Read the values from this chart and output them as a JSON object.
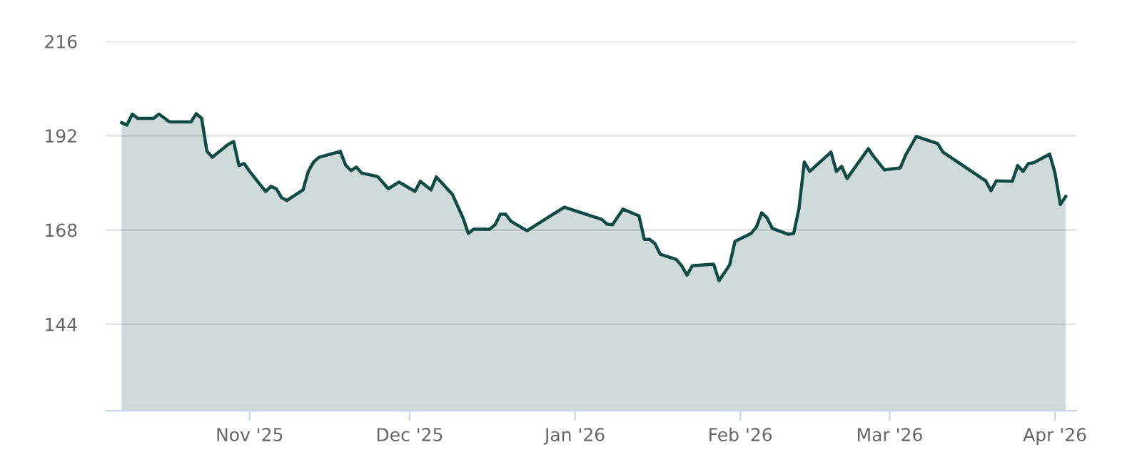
{
  "chart_data": {
    "type": "area",
    "color": "#0f4a44",
    "x": [
      "2025-10-08",
      "2025-10-09",
      "2025-10-10",
      "2025-10-11",
      "2025-10-14",
      "2025-10-15",
      "2025-10-16",
      "2025-10-17",
      "2025-10-21",
      "2025-10-22",
      "2025-10-23",
      "2025-10-24",
      "2025-10-25",
      "2025-10-28",
      "2025-10-29",
      "2025-10-30",
      "2025-10-31",
      "2025-11-01",
      "2025-11-04",
      "2025-11-05",
      "2025-11-06",
      "2025-11-07",
      "2025-11-08",
      "2025-11-11",
      "2025-11-12",
      "2025-11-13",
      "2025-11-14",
      "2025-11-18",
      "2025-11-19",
      "2025-11-20",
      "2025-11-21",
      "2025-11-22",
      "2025-11-25",
      "2025-11-27",
      "2025-11-29",
      "2025-12-02",
      "2025-12-03",
      "2025-12-05",
      "2025-12-06",
      "2025-12-09",
      "2025-12-11",
      "2025-12-12",
      "2025-12-13",
      "2025-12-16",
      "2025-12-17",
      "2025-12-18",
      "2025-12-19",
      "2025-12-20",
      "2025-12-23",
      "2025-12-30",
      "2026-01-06",
      "2026-01-07",
      "2026-01-08",
      "2026-01-10",
      "2026-01-13",
      "2026-01-14",
      "2026-01-15",
      "2026-01-16",
      "2026-01-17",
      "2026-01-20",
      "2026-01-21",
      "2026-01-22",
      "2026-01-23",
      "2026-01-27",
      "2026-01-28",
      "2026-01-30",
      "2026-01-31",
      "2026-02-03",
      "2026-02-04",
      "2026-02-05",
      "2026-02-06",
      "2026-02-07",
      "2026-02-10",
      "2026-02-11",
      "2026-02-12",
      "2026-02-13",
      "2026-02-14",
      "2026-02-18",
      "2026-02-19",
      "2026-02-20",
      "2026-02-21",
      "2026-02-25",
      "2026-02-26",
      "2026-02-28",
      "2026-03-03",
      "2026-03-04",
      "2026-03-06",
      "2026-03-08",
      "2026-03-10",
      "2026-03-11",
      "2026-03-19",
      "2026-03-20",
      "2026-03-21",
      "2026-03-24",
      "2026-03-25",
      "2026-03-26",
      "2026-03-27",
      "2026-03-28",
      "2026-03-31",
      "2026-04-01",
      "2026-04-02",
      "2026-04-03"
    ],
    "values": [
      195.3,
      194.7,
      197.5,
      196.4,
      196.4,
      197.5,
      196.5,
      195.5,
      195.5,
      197.6,
      196.4,
      188.0,
      186.5,
      189.8,
      190.5,
      184.4,
      184.9,
      182.9,
      177.8,
      179.1,
      178.5,
      176.2,
      175.5,
      178.2,
      182.9,
      185.3,
      186.5,
      188.0,
      184.5,
      183.1,
      184.0,
      182.5,
      181.6,
      178.5,
      180.2,
      177.8,
      180.4,
      178.2,
      181.5,
      177.1,
      171.1,
      167.1,
      168.2,
      168.2,
      169.3,
      172.0,
      172.0,
      170.2,
      167.8,
      173.8,
      170.7,
      169.5,
      169.3,
      173.3,
      171.6,
      165.6,
      165.6,
      164.5,
      161.8,
      160.5,
      158.9,
      156.5,
      158.9,
      159.3,
      155.1,
      159.1,
      165.1,
      167.1,
      168.7,
      172.4,
      171.1,
      168.4,
      166.9,
      167.1,
      173.5,
      185.3,
      182.9,
      187.8,
      182.9,
      184.2,
      181.1,
      188.7,
      186.7,
      183.3,
      183.8,
      187.1,
      191.8,
      190.9,
      190.0,
      187.8,
      180.5,
      178.0,
      180.5,
      180.4,
      184.4,
      182.9,
      184.9,
      185.1,
      187.3,
      182.5,
      174.5,
      176.5
    ],
    "xlim": [
      "2025-10-05",
      "2026-04-05"
    ],
    "xticks": [
      {
        "value": "2025-11-01",
        "label": "Nov '25"
      },
      {
        "value": "2025-12-01",
        "label": "Dec '25"
      },
      {
        "value": "2026-01-01",
        "label": "Jan '26"
      },
      {
        "value": "2026-02-01",
        "label": "Feb '26"
      },
      {
        "value": "2026-03-01",
        "label": "Mar '26"
      },
      {
        "value": "2026-04-01",
        "label": "Apr '26"
      }
    ],
    "ylim": [
      122,
      216
    ],
    "yticks": [
      144,
      168,
      192,
      216
    ],
    "grid": "y",
    "legend": false
  }
}
